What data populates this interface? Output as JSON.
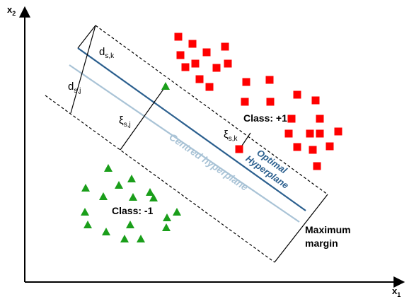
{
  "axes": {
    "x_label": "x",
    "x_sub": "1",
    "y_label": "x",
    "y_sub": "2"
  },
  "labels": {
    "d_sk": {
      "main": "d",
      "sub": "s,k"
    },
    "d_sj": {
      "main": "d",
      "sub": "s,j"
    },
    "xi_sj": {
      "main": "ξ",
      "sub": "s,j"
    },
    "xi_sk": {
      "main": "ξ",
      "sub": "s,k"
    },
    "class_pos": "Class: +1",
    "class_neg": "Class: -1",
    "optimal_line1": "Optimal",
    "optimal_line2": "Hyperplane",
    "centred": "Centred hyperplane",
    "margin_line1": "Maximum",
    "margin_line2": "margin"
  },
  "colors": {
    "positive": "#ff0000",
    "negative": "#1a9e1a",
    "optimal": "#2b5f8e",
    "centred": "#a9c3d6",
    "ink": "#000000"
  },
  "positive_points": [
    [
      252,
      52
    ],
    [
      272,
      62
    ],
    [
      292,
      74
    ],
    [
      318,
      66
    ],
    [
      255,
      78
    ],
    [
      276,
      90
    ],
    [
      262,
      95
    ],
    [
      306,
      96
    ],
    [
      322,
      90
    ],
    [
      282,
      112
    ],
    [
      296,
      123
    ],
    [
      348,
      116
    ],
    [
      381,
      113
    ],
    [
      346,
      144
    ],
    [
      382,
      144
    ],
    [
      420,
      134
    ],
    [
      446,
      142
    ],
    [
      412,
      168
    ],
    [
      452,
      168
    ],
    [
      408,
      189
    ],
    [
      438,
      189
    ],
    [
      452,
      189
    ],
    [
      478,
      186
    ],
    [
      420,
      208
    ],
    [
      442,
      212
    ],
    [
      466,
      207
    ],
    [
      448,
      235
    ],
    [
      338,
      211
    ]
  ],
  "negative_points": [
    [
      234,
      122
    ],
    [
      153,
      238
    ],
    [
      186,
      253
    ],
    [
      121,
      266
    ],
    [
      168,
      262
    ],
    [
      212,
      272
    ],
    [
      146,
      278
    ],
    [
      188,
      279
    ],
    [
      217,
      280
    ],
    [
      120,
      300
    ],
    [
      250,
      300
    ],
    [
      236,
      308
    ],
    [
      124,
      318
    ],
    [
      150,
      328
    ],
    [
      184,
      318
    ],
    [
      235,
      322
    ],
    [
      176,
      338
    ],
    [
      199,
      338
    ]
  ]
}
